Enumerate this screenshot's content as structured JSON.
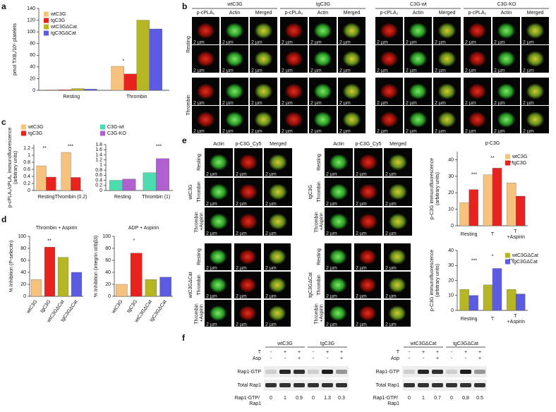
{
  "panel_labels": [
    "a",
    "b",
    "c",
    "d",
    "e",
    "f"
  ],
  "scale_bar": "2 µm",
  "chart_data": [
    {
      "type": "bar",
      "y_label": "pmol TXB₂/10⁵ platelets",
      "categories": [
        "Resting",
        "Thrombin"
      ],
      "series": [
        {
          "name": "wtC3G",
          "color": "#f7c27d",
          "values": [
            1,
            41
          ]
        },
        {
          "name": "tgC3G",
          "color": "#e8231f",
          "values": [
            1,
            28
          ]
        },
        {
          "name": "wtC3GΔCat",
          "color": "#b6b625",
          "values": [
            3,
            120
          ]
        },
        {
          "name": "tgC3GΔCat",
          "color": "#5b5be3",
          "values": [
            2,
            105
          ]
        }
      ],
      "ylim": [
        0,
        140
      ],
      "yticks": [
        0,
        20,
        40,
        60,
        80,
        100,
        120,
        140
      ],
      "annotations": [
        "*"
      ]
    },
    {
      "type": "bar",
      "y_label": [
        "p-cPLA₂/cPLA₂ immunofluorescence",
        "(arbitrary units)"
      ],
      "categories": [
        "Resting",
        "Thrombin (0.2)"
      ],
      "series": [
        {
          "name": "wtC3G",
          "color": "#f7c27d",
          "values": [
            0.7,
            1.08
          ]
        },
        {
          "name": "tgC3G",
          "color": "#e8231f",
          "values": [
            0.38,
            0.37
          ]
        }
      ],
      "ylim": [
        0,
        1.3
      ],
      "yticks": [
        0,
        0.2,
        0.4,
        0.6,
        0.8,
        1,
        1.2
      ],
      "annotations": [
        "**",
        "***"
      ]
    },
    {
      "type": "bar",
      "categories": [
        "Resting",
        "Thrombin (1)"
      ],
      "series": [
        {
          "name": "C3G-wt",
          "color": "#4ddbb0",
          "values": [
            0.4,
            0.7
          ]
        },
        {
          "name": "C3G-KO",
          "color": "#b060d0",
          "values": [
            0.45,
            1.25
          ]
        }
      ],
      "ylim": [
        0,
        1.8
      ],
      "yticks": [
        0,
        0.2,
        0.4,
        0.6,
        0.8,
        1,
        1.2,
        1.4,
        1.6,
        1.8
      ],
      "annotations": [
        "***"
      ]
    },
    {
      "type": "bar",
      "title": "Thrombin + Aspirin",
      "y_label": "% Inhibition (P-selectin)",
      "categories": [
        "wtC3G",
        "tgC3G",
        "wtC3GΔCat",
        "tgC3GΔCat"
      ],
      "values": [
        28,
        82,
        65,
        40
      ],
      "colors": [
        "#f7c27d",
        "#e8231f",
        "#b6b625",
        "#5b5be3"
      ],
      "ylim": [
        0,
        100
      ],
      "yticks": [
        0,
        20,
        40,
        60,
        80,
        100
      ],
      "annotations": [
        "**"
      ]
    },
    {
      "type": "bar",
      "title": "ADP + Aspirin",
      "y_label": "% Inhibition (integrin αIIbβ3)",
      "categories": [
        "wtC3G",
        "tgC3G",
        "wtC3GΔCat",
        "tgC3GΔCat"
      ],
      "values": [
        20,
        72,
        28,
        32
      ],
      "colors": [
        "#f7c27d",
        "#e8231f",
        "#b6b625",
        "#5b5be3"
      ],
      "ylim": [
        0,
        100
      ],
      "yticks": [
        0,
        20,
        40,
        60,
        80,
        100
      ],
      "annotations": [
        "*"
      ]
    },
    {
      "type": "bar",
      "title": "p-C3G",
      "y_label": [
        "p-C3G immunofluorescence",
        "(arbitrary units)"
      ],
      "categories": [
        "Resting",
        "T",
        "T +Aspirin"
      ],
      "series": [
        {
          "name": "wtC3G",
          "color": "#f7c27d",
          "values": [
            14,
            31,
            26
          ]
        },
        {
          "name": "tgC3G",
          "color": "#e8231f",
          "values": [
            22,
            35,
            18
          ]
        }
      ],
      "ylim": [
        0,
        45
      ],
      "yticks": [
        0,
        10,
        20,
        30,
        40
      ],
      "annotations": [
        "***",
        "**",
        "**"
      ]
    },
    {
      "type": "bar",
      "y_label": [
        "p-C3G immunofluorescence",
        "(arbitrary units)"
      ],
      "categories": [
        "Resting",
        "T",
        "T +Aspirin"
      ],
      "series": [
        {
          "name": "wtC3GΔCat",
          "color": "#b6b625",
          "values": [
            14,
            17,
            14
          ]
        },
        {
          "name": "tgC3GΔCat",
          "color": "#5b5be3",
          "values": [
            10,
            28,
            11
          ]
        }
      ],
      "ylim": [
        0,
        40
      ],
      "yticks": [
        0,
        10,
        20,
        30,
        40
      ],
      "annotations": [
        "***",
        "*",
        "***"
      ]
    }
  ],
  "panel_b": {
    "groups": [
      "wtC3G",
      "tgC3G",
      "C3G-wt",
      "C3G-KO"
    ],
    "columns": [
      "p-cPLA₂",
      "Actin",
      "Merged"
    ],
    "rows": [
      "Resting",
      "Thrombin"
    ]
  },
  "panel_e": {
    "groups": [
      "wtC3G",
      "tgC3G",
      "wtC3GΔCat",
      "tgC3GΔCat"
    ],
    "columns": [
      "Actin",
      "p-C3G_Cy5",
      "Merged"
    ],
    "rows": [
      "Resting",
      "Thrombin",
      "Thrombin +Aspirin"
    ]
  },
  "panel_f": {
    "treatments": [
      {
        "label": "T",
        "signs": [
          "-",
          "+",
          "+",
          "-",
          "+",
          "+"
        ]
      },
      {
        "label": "Asp",
        "signs": [
          "-",
          "-",
          "+",
          "-",
          "-",
          "+"
        ]
      }
    ],
    "bands": [
      "Rap1-GTP",
      "Total Rap1"
    ],
    "ratio_label": "Rap1-GTP/ Rap1",
    "blots": [
      {
        "groups": [
          "wtC3G",
          "tgC3G"
        ],
        "ratios": [
          "0",
          "1",
          "0.9",
          "0",
          "1.3",
          "0.3"
        ]
      },
      {
        "groups": [
          "wtC3GΔCat",
          "tgC3GΔCat"
        ],
        "ratios": [
          "0",
          "1",
          "0.7",
          "0",
          "0,8",
          "0.5"
        ]
      }
    ]
  }
}
